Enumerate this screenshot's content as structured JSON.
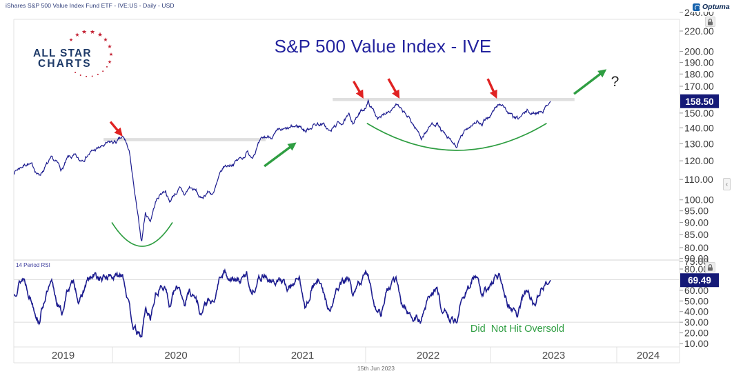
{
  "window": {
    "title": "iShares S&P 500 Value Index Fund ETF - IVE:US - Daily - USD"
  },
  "optuma": {
    "label": "Optuma"
  },
  "logo": {
    "line1": "ALL STAR",
    "line2": "CHARTS"
  },
  "chart_title": "S&P 500 Value Index - IVE",
  "price_axis": {
    "labels": [
      240,
      220,
      200,
      190,
      180,
      170,
      150,
      140,
      130,
      120,
      110,
      100,
      95,
      90,
      85,
      80,
      75
    ],
    "badge": "158.50"
  },
  "rsi_axis": {
    "labels": [
      90,
      80,
      60,
      50,
      40,
      30,
      20,
      10
    ],
    "badge": "69.49"
  },
  "rsi_panel": {
    "label": "14 Period RSI",
    "overbought": 70,
    "oversold": 30
  },
  "x_axis": {
    "years": [
      "2019",
      "2020",
      "2021",
      "2022",
      "2023",
      "2024"
    ],
    "date_stamp": "15th Jun 2023"
  },
  "colors": {
    "navy": "#1c1c8f",
    "red": "#e02222",
    "green": "#2f9e42",
    "annotation_gray": "#dfdfdf",
    "badge_bg": "#151a77",
    "axis_text": "#3b3b3b",
    "grid": "#dcdcdc",
    "frame": "#e0e0e0",
    "separator": "#d6d6d6",
    "year_text": "#4c4c4c",
    "tick": "#9a9a9a",
    "question": "#222222"
  },
  "chart_data": {
    "type": "line",
    "title": "S&P 500 Value Index - IVE",
    "symbol": "IVE:US",
    "frequency": "Daily",
    "currency": "USD",
    "price_scale": "log",
    "last_price": 158.5,
    "rsi_last": 69.49,
    "x_range_years": [
      2019.22,
      2024.48
    ],
    "price_range_visible": [
      75,
      240
    ],
    "rsi_range_visible": [
      10,
      90
    ],
    "rsi_gridlines": [
      70,
      30
    ],
    "legend_position": "none",
    "price_series": [
      [
        2019.22,
        114
      ],
      [
        2019.28,
        117
      ],
      [
        2019.33,
        119
      ],
      [
        2019.38,
        116
      ],
      [
        2019.42,
        112
      ],
      [
        2019.47,
        117
      ],
      [
        2019.52,
        120
      ],
      [
        2019.56,
        118
      ],
      [
        2019.6,
        115
      ],
      [
        2019.65,
        121
      ],
      [
        2019.7,
        122
      ],
      [
        2019.74,
        119
      ],
      [
        2019.8,
        124
      ],
      [
        2019.86,
        126
      ],
      [
        2019.92,
        128
      ],
      [
        2019.98,
        130
      ],
      [
        2020.04,
        131
      ],
      [
        2020.08,
        133
      ],
      [
        2020.11,
        130
      ],
      [
        2020.14,
        122
      ],
      [
        2020.17,
        105
      ],
      [
        2020.2,
        92
      ],
      [
        2020.23,
        82
      ],
      [
        2020.26,
        94
      ],
      [
        2020.3,
        91
      ],
      [
        2020.34,
        99
      ],
      [
        2020.38,
        103
      ],
      [
        2020.42,
        105
      ],
      [
        2020.45,
        99
      ],
      [
        2020.49,
        103
      ],
      [
        2020.53,
        105
      ],
      [
        2020.57,
        102
      ],
      [
        2020.61,
        106
      ],
      [
        2020.66,
        104
      ],
      [
        2020.7,
        100
      ],
      [
        2020.75,
        104
      ],
      [
        2020.8,
        103
      ],
      [
        2020.84,
        110
      ],
      [
        2020.88,
        116
      ],
      [
        2020.93,
        118
      ],
      [
        2020.98,
        120
      ],
      [
        2021.03,
        122
      ],
      [
        2021.06,
        125
      ],
      [
        2021.1,
        123
      ],
      [
        2021.15,
        129
      ],
      [
        2021.2,
        133
      ],
      [
        2021.26,
        135
      ],
      [
        2021.32,
        137
      ],
      [
        2021.38,
        138
      ],
      [
        2021.43,
        140
      ],
      [
        2021.48,
        141
      ],
      [
        2021.53,
        138
      ],
      [
        2021.58,
        142
      ],
      [
        2021.63,
        143
      ],
      [
        2021.68,
        141
      ],
      [
        2021.72,
        137
      ],
      [
        2021.77,
        142
      ],
      [
        2021.82,
        144
      ],
      [
        2021.87,
        147
      ],
      [
        2021.9,
        144
      ],
      [
        2021.94,
        148
      ],
      [
        2021.98,
        152
      ],
      [
        2022.02,
        158
      ],
      [
        2022.05,
        153
      ],
      [
        2022.08,
        149
      ],
      [
        2022.12,
        146
      ],
      [
        2022.16,
        151
      ],
      [
        2022.2,
        154
      ],
      [
        2022.24,
        157
      ],
      [
        2022.28,
        151
      ],
      [
        2022.32,
        148
      ],
      [
        2022.36,
        144
      ],
      [
        2022.4,
        139
      ],
      [
        2022.44,
        134
      ],
      [
        2022.48,
        138
      ],
      [
        2022.52,
        142
      ],
      [
        2022.56,
        144
      ],
      [
        2022.6,
        138
      ],
      [
        2022.64,
        133
      ],
      [
        2022.68,
        130
      ],
      [
        2022.72,
        128
      ],
      [
        2022.76,
        134
      ],
      [
        2022.8,
        139
      ],
      [
        2022.84,
        143
      ],
      [
        2022.88,
        145
      ],
      [
        2022.92,
        141
      ],
      [
        2022.96,
        146
      ],
      [
        2023.0,
        150
      ],
      [
        2023.04,
        155
      ],
      [
        2023.08,
        157
      ],
      [
        2023.12,
        151
      ],
      [
        2023.16,
        147
      ],
      [
        2023.2,
        145
      ],
      [
        2023.24,
        148
      ],
      [
        2023.28,
        151
      ],
      [
        2023.32,
        149
      ],
      [
        2023.36,
        151
      ],
      [
        2023.4,
        153
      ],
      [
        2023.43,
        155
      ],
      [
        2023.46,
        158.5
      ]
    ],
    "rsi_series": [
      [
        2019.22,
        55
      ],
      [
        2019.26,
        68
      ],
      [
        2019.3,
        72
      ],
      [
        2019.34,
        58
      ],
      [
        2019.38,
        45
      ],
      [
        2019.42,
        32
      ],
      [
        2019.47,
        55
      ],
      [
        2019.52,
        65
      ],
      [
        2019.56,
        50
      ],
      [
        2019.6,
        38
      ],
      [
        2019.65,
        62
      ],
      [
        2019.7,
        66
      ],
      [
        2019.74,
        48
      ],
      [
        2019.8,
        68
      ],
      [
        2019.86,
        73
      ],
      [
        2019.92,
        70
      ],
      [
        2019.98,
        74
      ],
      [
        2020.04,
        72
      ],
      [
        2020.08,
        78
      ],
      [
        2020.11,
        60
      ],
      [
        2020.14,
        38
      ],
      [
        2020.17,
        25
      ],
      [
        2020.2,
        18
      ],
      [
        2020.23,
        15
      ],
      [
        2020.26,
        42
      ],
      [
        2020.3,
        35
      ],
      [
        2020.34,
        55
      ],
      [
        2020.38,
        62
      ],
      [
        2020.42,
        66
      ],
      [
        2020.45,
        44
      ],
      [
        2020.49,
        58
      ],
      [
        2020.53,
        63
      ],
      [
        2020.57,
        48
      ],
      [
        2020.61,
        60
      ],
      [
        2020.66,
        52
      ],
      [
        2020.7,
        38
      ],
      [
        2020.75,
        50
      ],
      [
        2020.8,
        45
      ],
      [
        2020.84,
        68
      ],
      [
        2020.88,
        78
      ],
      [
        2020.93,
        72
      ],
      [
        2020.98,
        68
      ],
      [
        2021.03,
        70
      ],
      [
        2021.06,
        75
      ],
      [
        2021.1,
        58
      ],
      [
        2021.15,
        70
      ],
      [
        2021.2,
        76
      ],
      [
        2021.26,
        66
      ],
      [
        2021.32,
        70
      ],
      [
        2021.38,
        62
      ],
      [
        2021.43,
        68
      ],
      [
        2021.48,
        70
      ],
      [
        2021.53,
        44
      ],
      [
        2021.58,
        64
      ],
      [
        2021.63,
        68
      ],
      [
        2021.68,
        52
      ],
      [
        2021.72,
        38
      ],
      [
        2021.77,
        60
      ],
      [
        2021.82,
        66
      ],
      [
        2021.87,
        72
      ],
      [
        2021.9,
        50
      ],
      [
        2021.94,
        64
      ],
      [
        2021.98,
        72
      ],
      [
        2022.02,
        76
      ],
      [
        2022.05,
        58
      ],
      [
        2022.08,
        44
      ],
      [
        2022.12,
        38
      ],
      [
        2022.16,
        56
      ],
      [
        2022.2,
        64
      ],
      [
        2022.24,
        70
      ],
      [
        2022.28,
        48
      ],
      [
        2022.32,
        42
      ],
      [
        2022.36,
        36
      ],
      [
        2022.4,
        33
      ],
      [
        2022.44,
        31
      ],
      [
        2022.48,
        48
      ],
      [
        2022.52,
        58
      ],
      [
        2022.56,
        62
      ],
      [
        2022.6,
        44
      ],
      [
        2022.64,
        36
      ],
      [
        2022.68,
        33
      ],
      [
        2022.72,
        32
      ],
      [
        2022.76,
        50
      ],
      [
        2022.8,
        62
      ],
      [
        2022.84,
        70
      ],
      [
        2022.88,
        73
      ],
      [
        2022.92,
        52
      ],
      [
        2022.96,
        60
      ],
      [
        2023.0,
        66
      ],
      [
        2023.04,
        74
      ],
      [
        2023.08,
        70
      ],
      [
        2023.12,
        50
      ],
      [
        2023.16,
        42
      ],
      [
        2023.2,
        38
      ],
      [
        2023.24,
        52
      ],
      [
        2023.28,
        60
      ],
      [
        2023.32,
        48
      ],
      [
        2023.36,
        56
      ],
      [
        2023.4,
        62
      ],
      [
        2023.43,
        66
      ],
      [
        2023.46,
        69.49
      ]
    ],
    "annotations": {
      "resistance_levels": [
        {
          "from_year": 2019.93,
          "to_year": 2021.21,
          "price": 132.5
        },
        {
          "from_year": 2021.74,
          "to_year": 2023.65,
          "price": 159.8
        }
      ],
      "red_arrows": [
        {
          "tail": [
            2019.984,
            144
          ],
          "head": [
            2020.07,
            135.5
          ]
        },
        {
          "tail": [
            2021.905,
            174
          ],
          "head": [
            2021.975,
            161.8
          ]
        },
        {
          "tail": [
            2022.18,
            176
          ],
          "head": [
            2022.26,
            161.8
          ]
        },
        {
          "tail": [
            2022.965,
            176
          ],
          "head": [
            2023.03,
            161.8
          ]
        }
      ],
      "green_arrows": [
        {
          "tail": [
            2021.2,
            117
          ],
          "head": [
            2021.44,
            130
          ]
        },
        {
          "tail": [
            2023.646,
            164
          ],
          "head": [
            2023.89,
            183
          ]
        }
      ],
      "green_arcs": [
        {
          "from_year": 2019.995,
          "to_year": 2020.474,
          "edge_price": 90,
          "bottom_price": 80.5
        },
        {
          "from_year": 2022.01,
          "to_year": 2023.43,
          "edge_price": 143,
          "bottom_price": 126
        }
      ],
      "question_mark": {
        "year": 2023.97,
        "price": 174,
        "glyph": "?"
      },
      "oversold_note": {
        "year": 2023.17,
        "rsi": 21,
        "text": "Did  Not Hit Oversold"
      }
    }
  }
}
